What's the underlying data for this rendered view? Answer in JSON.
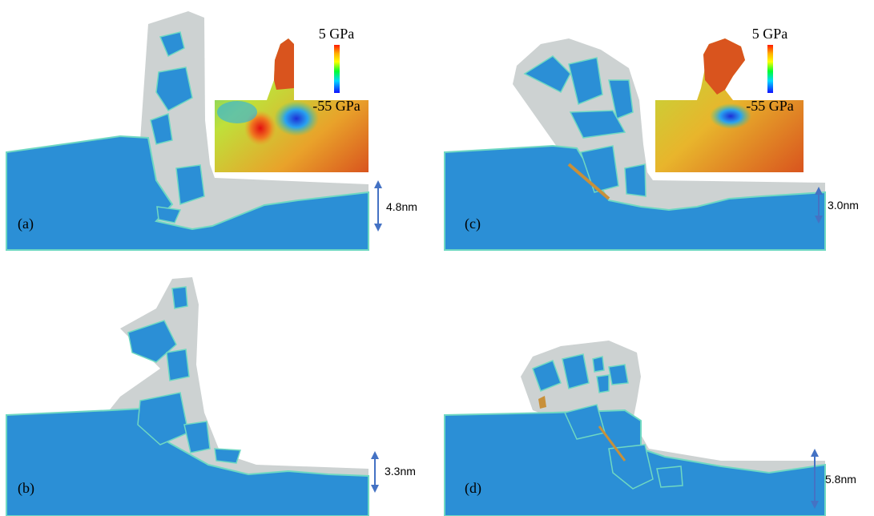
{
  "panels": [
    {
      "id": "a",
      "label": "(a)",
      "depth": "4.8nm"
    },
    {
      "id": "b",
      "label": "(b)",
      "depth": "3.3nm"
    },
    {
      "id": "c",
      "label": "(c)",
      "depth": "3.0nm"
    },
    {
      "id": "d",
      "label": "(d)",
      "depth": "5.8nm"
    }
  ],
  "colorbar": {
    "max_label": "5 GPa",
    "min_label": "-55 GPa"
  },
  "colors": {
    "substrate": "#2b8fd6",
    "disordered": "#cdd2d2",
    "interface": "#6fd8c2",
    "arrow": "#4472c4",
    "stress_high": "#d9541e",
    "stress_low": "#1d3bd6"
  }
}
